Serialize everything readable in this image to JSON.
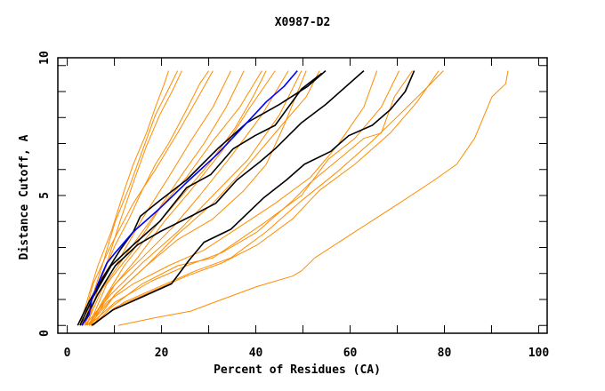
{
  "chart_data": {
    "type": "line",
    "title": "X0987-D2",
    "xlabel": "Percent of Residues (CA)",
    "ylabel": "Distance Cutoff, A",
    "xlim": [
      -2,
      101.8
    ],
    "ylim": [
      -0.3,
      10.3
    ],
    "x_tick_labels": [
      0,
      20,
      40,
      60,
      80,
      100
    ],
    "x_minor_ticks": [
      10,
      30,
      50,
      70,
      90
    ],
    "y_tick_labels": [
      0,
      5,
      10
    ],
    "y_minor_ticks": [
      1,
      2,
      3,
      4,
      6,
      7,
      8,
      9
    ],
    "grid": false,
    "legend": "none",
    "series": [
      {
        "color": "#ff8c00",
        "points": [
          [
            2.7,
            0
          ],
          [
            4.6,
            1.2
          ],
          [
            6.5,
            2.3
          ],
          [
            9.3,
            3.6
          ],
          [
            12.1,
            5.2
          ],
          [
            14,
            6.2
          ],
          [
            16.8,
            7.4
          ],
          [
            18.7,
            8.4
          ],
          [
            20.6,
            9.3
          ],
          [
            21.5,
            9.8
          ]
        ]
      },
      {
        "color": "#ff8c00",
        "points": [
          [
            3.7,
            0
          ],
          [
            5.5,
            1.2
          ],
          [
            7.4,
            2.3
          ],
          [
            10.2,
            4
          ],
          [
            13.1,
            5.3
          ],
          [
            15.9,
            6.7
          ],
          [
            18.7,
            8.1
          ],
          [
            21.5,
            9.1
          ],
          [
            23.4,
            9.8
          ]
        ]
      },
      {
        "color": "#ff8c00",
        "points": [
          [
            4.2,
            0
          ],
          [
            6.5,
            1.4
          ],
          [
            8.4,
            2.4
          ],
          [
            11.2,
            4
          ],
          [
            14,
            5.5
          ],
          [
            16.8,
            6.9
          ],
          [
            19.6,
            8.1
          ],
          [
            22.5,
            9.1
          ],
          [
            24.3,
            9.8
          ]
        ]
      },
      {
        "color": "#ff8c00",
        "points": [
          [
            3.1,
            0
          ],
          [
            5.5,
            1.6
          ],
          [
            9.3,
            3.1
          ],
          [
            14,
            4.7
          ],
          [
            18.7,
            6
          ],
          [
            23.4,
            7.4
          ],
          [
            27.2,
            8.6
          ],
          [
            30.9,
            9.8
          ]
        ]
      },
      {
        "color": "#ff8c00",
        "points": [
          [
            3.7,
            0
          ],
          [
            6.5,
            1.2
          ],
          [
            11.2,
            2.6
          ],
          [
            15.9,
            4.1
          ],
          [
            21.5,
            5.7
          ],
          [
            26.2,
            7.1
          ],
          [
            30.9,
            8.4
          ],
          [
            34.7,
            9.8
          ]
        ]
      },
      {
        "color": "#ff8c00",
        "points": [
          [
            4,
            0
          ],
          [
            7.4,
            1.4
          ],
          [
            13.1,
            2.9
          ],
          [
            18.7,
            4.3
          ],
          [
            24.3,
            5.8
          ],
          [
            29,
            7
          ],
          [
            33.7,
            8.4
          ],
          [
            37.5,
            9.8
          ]
        ]
      },
      {
        "color": "#ff8c00",
        "points": [
          [
            4.6,
            0
          ],
          [
            8.4,
            1.6
          ],
          [
            14,
            2.9
          ],
          [
            19.6,
            4.5
          ],
          [
            25.3,
            5.7
          ],
          [
            30.9,
            7.1
          ],
          [
            36.6,
            8.4
          ],
          [
            41.3,
            9.8
          ]
        ]
      },
      {
        "color": "#ff8c00",
        "points": [
          [
            4.6,
            0
          ],
          [
            9.3,
            1.4
          ],
          [
            14.9,
            2.6
          ],
          [
            20.6,
            4
          ],
          [
            26.2,
            5.2
          ],
          [
            32.8,
            6.7
          ],
          [
            38.4,
            8.3
          ],
          [
            44.1,
            9.8
          ]
        ]
      },
      {
        "color": "#ff8c00",
        "points": [
          [
            5,
            0
          ],
          [
            10.2,
            1.6
          ],
          [
            15.9,
            2.6
          ],
          [
            22.5,
            3.8
          ],
          [
            28.1,
            5
          ],
          [
            34.7,
            6.5
          ],
          [
            41.3,
            8.1
          ],
          [
            46.9,
            9.8
          ]
        ]
      },
      {
        "color": "#ff8c00",
        "points": [
          [
            3.7,
            0
          ],
          [
            9.3,
            1.2
          ],
          [
            15.9,
            2.4
          ],
          [
            23.4,
            3.6
          ],
          [
            30.9,
            5
          ],
          [
            38.4,
            6.4
          ],
          [
            45,
            8.1
          ],
          [
            49.7,
            9.8
          ]
        ]
      },
      {
        "color": "#ff8c00",
        "points": [
          [
            5.5,
            0
          ],
          [
            10.2,
            1.2
          ],
          [
            16.8,
            2.3
          ],
          [
            23.4,
            3.5
          ],
          [
            30.9,
            4.7
          ],
          [
            37.5,
            6
          ],
          [
            45,
            7.6
          ],
          [
            50.7,
            8.8
          ],
          [
            53.5,
            9.8
          ]
        ]
      },
      {
        "color": "#ff8c00",
        "points": [
          [
            4.2,
            0
          ],
          [
            8.4,
            0.9
          ],
          [
            14,
            1.6
          ],
          [
            21.5,
            2.3
          ],
          [
            29,
            2.9
          ],
          [
            36.6,
            3.8
          ],
          [
            44.1,
            4.7
          ],
          [
            51.6,
            5.7
          ],
          [
            57.2,
            6.9
          ],
          [
            62.9,
            8.4
          ],
          [
            65.7,
            9.8
          ]
        ]
      },
      {
        "color": "#ff8c00",
        "points": [
          [
            5.5,
            0
          ],
          [
            9.3,
            0.7
          ],
          [
            15.9,
            1.6
          ],
          [
            23.4,
            2.3
          ],
          [
            30.9,
            2.6
          ],
          [
            36.6,
            3.3
          ],
          [
            42.2,
            4
          ],
          [
            49.7,
            5
          ],
          [
            55.4,
            6.4
          ],
          [
            61,
            7.2
          ],
          [
            66.6,
            8.4
          ],
          [
            70.4,
            9.8
          ]
        ]
      },
      {
        "color": "#ff8c00",
        "points": [
          [
            4.6,
            0
          ],
          [
            10.2,
            0.9
          ],
          [
            17.8,
            1.7
          ],
          [
            25.3,
            2.3
          ],
          [
            32.8,
            2.8
          ],
          [
            40.3,
            3.6
          ],
          [
            47.8,
            4.8
          ],
          [
            51.6,
            5.5
          ],
          [
            56.3,
            6.2
          ],
          [
            62.9,
            7.2
          ],
          [
            66.6,
            7.4
          ],
          [
            69.4,
            8.8
          ],
          [
            73.2,
            9.8
          ]
        ]
      },
      {
        "color": "#ff8c00",
        "points": [
          [
            5.5,
            0
          ],
          [
            10.2,
            0.7
          ],
          [
            17.8,
            1.3
          ],
          [
            25.3,
            1.9
          ],
          [
            32.8,
            2.4
          ],
          [
            40.3,
            3.1
          ],
          [
            47.8,
            4.1
          ],
          [
            53.5,
            5.2
          ],
          [
            61,
            6.2
          ],
          [
            68.5,
            7.4
          ],
          [
            74.2,
            8.6
          ],
          [
            78.8,
            9.8
          ]
        ]
      },
      {
        "color": "#ff8c00",
        "points": [
          [
            5,
            0
          ],
          [
            12.1,
            0.9
          ],
          [
            19.6,
            1.5
          ],
          [
            27.2,
            2.1
          ],
          [
            34.7,
            2.6
          ],
          [
            42.2,
            3.6
          ],
          [
            49.7,
            4.8
          ],
          [
            57.2,
            5.9
          ],
          [
            64.7,
            7.1
          ],
          [
            70.4,
            8.1
          ],
          [
            76,
            9.1
          ],
          [
            79.8,
            9.8
          ]
        ]
      },
      {
        "color": "#ff8c00",
        "points": [
          [
            10.8,
            0
          ],
          [
            18.7,
            0.3
          ],
          [
            26.2,
            0.55
          ],
          [
            32.8,
            1
          ],
          [
            40.3,
            1.5
          ],
          [
            47.8,
            1.9
          ],
          [
            49.7,
            2.1
          ],
          [
            52.5,
            2.6
          ],
          [
            61,
            3.6
          ],
          [
            70.4,
            4.7
          ],
          [
            77.9,
            5.6
          ],
          [
            82.6,
            6.2
          ],
          [
            86.4,
            7.2
          ],
          [
            90.1,
            8.8
          ],
          [
            93,
            9.3
          ],
          [
            93.5,
            9.8
          ]
        ]
      },
      {
        "color": "#ff8c00",
        "points": [
          [
            3.3,
            0
          ],
          [
            5.5,
            1.1
          ],
          [
            7.4,
            1.9
          ],
          [
            10.2,
            3.1
          ],
          [
            13.1,
            4.1
          ],
          [
            15.9,
            5.2
          ],
          [
            18.7,
            6.2
          ],
          [
            21.5,
            7
          ],
          [
            25.3,
            8.3
          ],
          [
            28.1,
            9.3
          ],
          [
            30,
            9.8
          ]
        ]
      },
      {
        "color": "#ff8c00",
        "points": [
          [
            4.6,
            0
          ],
          [
            7.4,
            0.9
          ],
          [
            12.1,
            2.3
          ],
          [
            17.8,
            3.6
          ],
          [
            23.4,
            4.8
          ],
          [
            30,
            6.2
          ],
          [
            35.6,
            7.6
          ],
          [
            39.4,
            8.8
          ],
          [
            42.2,
            9.8
          ]
        ]
      },
      {
        "color": "#ff8c00",
        "points": [
          [
            4.6,
            0
          ],
          [
            10.2,
            1.2
          ],
          [
            16.8,
            2.3
          ],
          [
            23.4,
            3.3
          ],
          [
            30.9,
            4.1
          ],
          [
            37.5,
            5.2
          ],
          [
            42.2,
            6.2
          ],
          [
            46,
            7.7
          ],
          [
            50.7,
            9.8
          ]
        ]
      },
      {
        "color": "#000000",
        "points": [
          [
            2.2,
            0
          ],
          [
            4.6,
            0.9
          ],
          [
            7.4,
            1.8
          ],
          [
            11.2,
            2.9
          ],
          [
            14,
            3.6
          ],
          [
            15.5,
            4.2
          ],
          [
            19.6,
            4.8
          ],
          [
            25.3,
            5.6
          ],
          [
            31.9,
            6.8
          ],
          [
            38.1,
            7.8
          ],
          [
            45,
            8.5
          ],
          [
            51,
            9.2
          ],
          [
            54.8,
            9.8
          ]
        ]
      },
      {
        "color": "#000000",
        "points": [
          [
            2.7,
            0
          ],
          [
            5.5,
            1.1
          ],
          [
            9.3,
            2.3
          ],
          [
            14,
            3.1
          ],
          [
            19.6,
            4
          ],
          [
            25.3,
            5.3
          ],
          [
            30.4,
            5.8
          ],
          [
            35.2,
            6.8
          ],
          [
            39.8,
            7.3
          ],
          [
            44.1,
            7.7
          ],
          [
            49.7,
            9.1
          ],
          [
            54,
            9.7
          ]
        ]
      },
      {
        "color": "#000000",
        "points": [
          [
            3.1,
            0
          ],
          [
            6.5,
            1.2
          ],
          [
            10.2,
            2.3
          ],
          [
            14.9,
            3.1
          ],
          [
            19.6,
            3.6
          ],
          [
            26.2,
            4.2
          ],
          [
            31.5,
            4.7
          ],
          [
            36,
            5.6
          ],
          [
            40.9,
            6.3
          ],
          [
            44.1,
            6.8
          ],
          [
            49.7,
            7.8
          ],
          [
            54.8,
            8.5
          ],
          [
            62.9,
            9.8
          ]
        ]
      },
      {
        "color": "#000000",
        "points": [
          [
            5.2,
            0
          ],
          [
            9.7,
            0.6
          ],
          [
            15.9,
            1.1
          ],
          [
            22.1,
            1.6
          ],
          [
            25.8,
            2.5
          ],
          [
            29,
            3.2
          ],
          [
            34.7,
            3.7
          ],
          [
            41.6,
            4.9
          ],
          [
            46.5,
            5.6
          ],
          [
            50.3,
            6.2
          ],
          [
            55.9,
            6.7
          ],
          [
            59.7,
            7.3
          ],
          [
            64.7,
            7.7
          ],
          [
            68.5,
            8.3
          ],
          [
            71.7,
            9
          ],
          [
            73.6,
            9.8
          ]
        ]
      },
      {
        "color": "#0000ff",
        "points": [
          [
            3.1,
            0
          ],
          [
            4.6,
            0.4
          ],
          [
            5.2,
            1
          ],
          [
            6.5,
            1.6
          ],
          [
            8.4,
            2.4
          ],
          [
            10.2,
            2.8
          ],
          [
            14,
            3.6
          ],
          [
            19.6,
            4.5
          ],
          [
            25.3,
            5.5
          ],
          [
            31.9,
            6.6
          ],
          [
            38.1,
            7.8
          ],
          [
            42.2,
            8.6
          ],
          [
            46,
            9.2
          ],
          [
            48.8,
            9.8
          ]
        ]
      }
    ]
  }
}
